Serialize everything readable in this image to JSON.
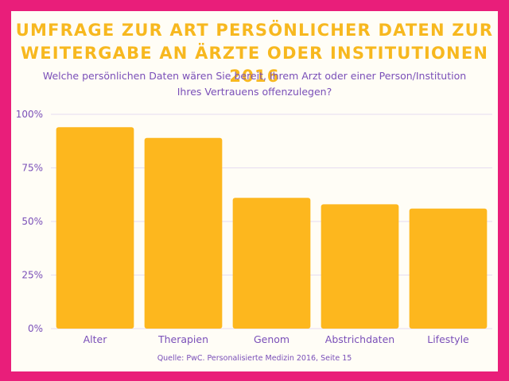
{
  "chart_data": {
    "type": "bar",
    "title": "UMFRAGE ZUR ART PERSÖNLICHER DATEN ZUR\nWEITERGABE AN ÄRZTE ODER INSTITUTIONEN 2016",
    "subtitle": "Welche persönlichen Daten wären Sie bereit, Ihrem Arzt oder einer Person/Institution\nIhres Vertrauens offenzulegen?",
    "categories": [
      "Alter",
      "Therapien",
      "Genom",
      "Abstrichdaten",
      "Lifestyle"
    ],
    "values": [
      94,
      89,
      61,
      58,
      56
    ],
    "ylim": [
      0,
      100
    ],
    "yticks": [
      0,
      25,
      50,
      75,
      100
    ],
    "ytick_labels": [
      "0%",
      "25%",
      "50%",
      "75%",
      "100%"
    ],
    "xlabel": "",
    "ylabel": "",
    "grid": true,
    "colors": {
      "bar": "#fdb71e",
      "title": "#f7b81f",
      "text": "#7a4fb8",
      "frame": "#e91e7a",
      "background": "#fffdf6",
      "grid": "#e6dcf0"
    },
    "source": "Quelle: PwC. Personalisierte Medizin 2016, Seite 15"
  }
}
